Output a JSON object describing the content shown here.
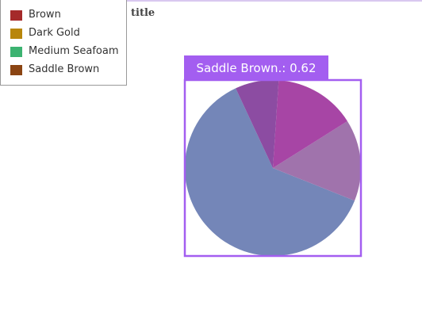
{
  "chart_data": {
    "type": "pie",
    "title": "title",
    "legend": [
      {
        "label": "Brown",
        "color": "#a52a2a"
      },
      {
        "label": "Dark Gold",
        "color": "#b8860b"
      },
      {
        "label": "Medium Seafoam",
        "color": "#3cb371"
      },
      {
        "label": "Saddle Brown",
        "color": "#8b4513"
      }
    ],
    "slices": [
      {
        "label": "Saddle Brown",
        "value": 0.62,
        "color": "#7486b8"
      },
      {
        "label": "Medium Seafoam",
        "value": 0.15,
        "color": "#a073ac"
      },
      {
        "label": "Dark Gold",
        "value": 0.15,
        "color": "#a745a5"
      },
      {
        "label": "Brown",
        "value": 0.08,
        "color": "#8c4ca2"
      }
    ],
    "highlight": {
      "label": "Saddle Brown.",
      "value": "0.62",
      "text": "Saddle Brown.: 0.62",
      "color": "#a35ef0"
    }
  }
}
